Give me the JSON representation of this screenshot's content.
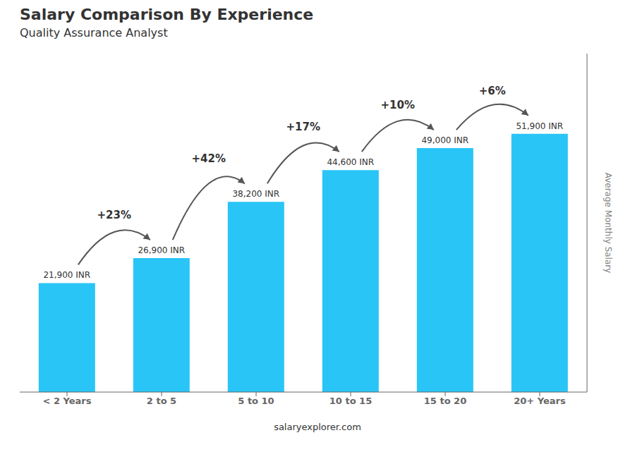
{
  "chart_data": {
    "type": "bar",
    "title": "Salary Comparison By Experience",
    "subtitle": "Quality Assurance Analyst",
    "source": "salaryexplorer.com",
    "ylabel": "Average Monthly Salary",
    "categories": [
      "< 2 Years",
      "2 to 5",
      "5 to 10",
      "10 to 15",
      "15 to 20",
      "20+ Years"
    ],
    "values": [
      21900,
      26900,
      38200,
      44600,
      49000,
      51900
    ],
    "value_labels": [
      "21,900 INR",
      "26,900 INR",
      "38,200 INR",
      "44,600 INR",
      "49,000 INR",
      "51,900 INR"
    ],
    "data_labels": true,
    "annotations": [
      "+23%",
      "+42%",
      "+17%",
      "+10%",
      "+6%"
    ],
    "color": "#29c5f6",
    "ylim": [
      0,
      68000
    ],
    "tick_labels": "x",
    "grid": false
  }
}
